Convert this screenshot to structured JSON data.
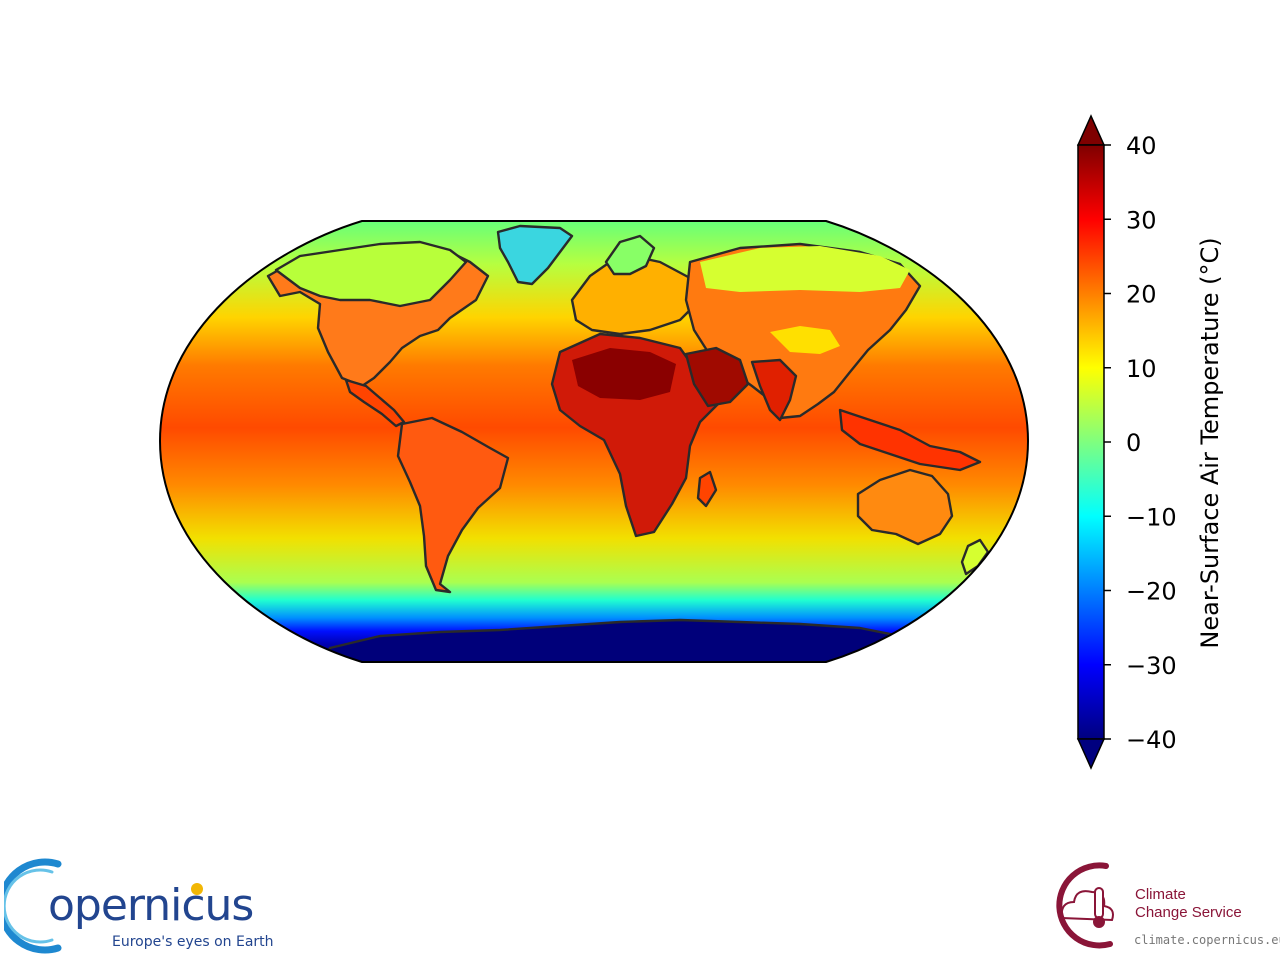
{
  "map": {
    "projection": "robinson",
    "variable": "Near-Surface Air Temperature",
    "colormap": "jet",
    "extend": "both"
  },
  "colorbar": {
    "label": "Near-Surface Air Temperature (°C)",
    "range": [
      -40,
      40
    ],
    "ticks": [
      "40",
      "30",
      "20",
      "10",
      "0",
      "−10",
      "−20",
      "−30",
      "−40"
    ],
    "orientation": "vertical",
    "position": "right"
  },
  "logos": {
    "copernicus": {
      "wordmark": "opernicus",
      "tagline": "Europe's eyes on Earth",
      "color": "#22458f",
      "accent": "#f2b705"
    },
    "c3s": {
      "line1": "Climate",
      "line2": "Change Service",
      "url": "climate.copernicus.eu",
      "color": "#8a1538",
      "icon": "thermometer-cloud-icon"
    }
  }
}
